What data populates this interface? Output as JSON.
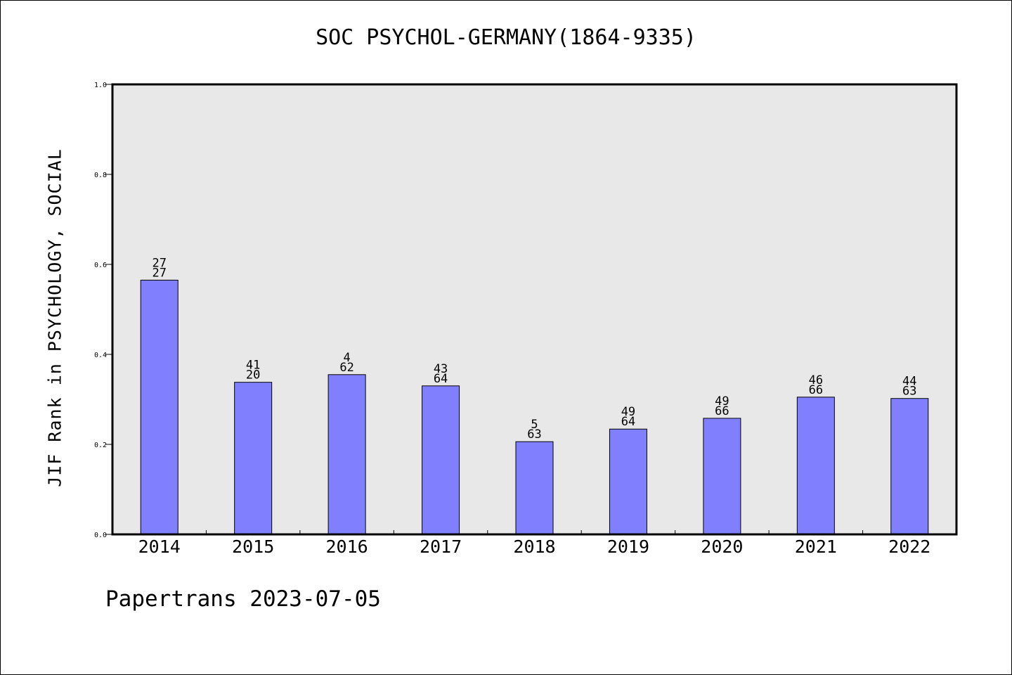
{
  "chart_data": {
    "type": "bar",
    "title": "SOC PSYCHOL-GERMANY(1864-9335)",
    "ylabel": "JIF Rank in PSYCHOLOGY, SOCIAL",
    "xlabel": "",
    "ylim": [
      0,
      1.0
    ],
    "yticks": [
      "0.0",
      "0.2",
      "0.4",
      "0.6",
      "0.8",
      "1.0"
    ],
    "categories": [
      "2014",
      "2015",
      "2016",
      "2017",
      "2018",
      "2019",
      "2020",
      "2021",
      "2022"
    ],
    "values": [
      0.565,
      0.338,
      0.355,
      0.33,
      0.206,
      0.234,
      0.258,
      0.305,
      0.302
    ],
    "label_top": [
      "27",
      "41",
      "4",
      "43",
      "5",
      "49",
      "49",
      "46",
      "44"
    ],
    "label_bottom": [
      "27",
      "20",
      "62",
      "64",
      "63",
      "64",
      "66",
      "66",
      "63"
    ],
    "bar_color": "#8080ff",
    "plot_background": "#e8e8e8",
    "grid": false,
    "legend": "none"
  },
  "footer": "Papertrans 2023-07-05"
}
